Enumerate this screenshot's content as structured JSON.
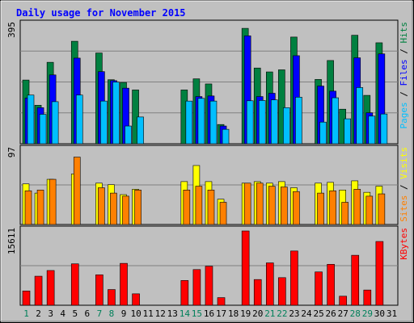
{
  "chart_data": {
    "type": "bar",
    "title": "Daily usage for November 2015",
    "categories": [
      "1",
      "2",
      "3",
      "4",
      "5",
      "6",
      "7",
      "8",
      "9",
      "10",
      "11",
      "12",
      "13",
      "14",
      "15",
      "16",
      "17",
      "18",
      "19",
      "20",
      "21",
      "22",
      "23",
      "24",
      "25",
      "26",
      "27",
      "28",
      "29",
      "30",
      "31"
    ],
    "weekend_days": [
      "1",
      "7",
      "8",
      "14",
      "15",
      "21",
      "22",
      "28",
      "29"
    ],
    "panels": [
      {
        "max_label": "395",
        "ylim": [
          0,
          395
        ],
        "legend": [
          "Pages",
          "Files",
          "Hits"
        ],
        "legend_separator": " / ",
        "series": [
          {
            "name": "Hits",
            "color": "#008040",
            "values": [
              212,
              128,
              271,
              0,
              341,
              0,
              302,
              213,
              204,
              179,
              0,
              0,
              0,
              179,
              216,
              199,
              64,
              0,
              384,
              252,
              239,
              246,
              355,
              0,
              214,
              277,
              115,
              361,
              161,
              336,
              0
            ]
          },
          {
            "name": "Files",
            "color": "#0000ff",
            "values": [
              152,
              120,
              229,
              0,
              285,
              0,
              240,
              210,
              185,
              0,
              0,
              0,
              0,
              0,
              157,
              159,
              59,
              0,
              359,
              157,
              168,
              0,
              293,
              0,
              192,
              175,
              0,
              286,
              103,
              299,
              0
            ]
          },
          {
            "name": "Pages",
            "color": "#00bfff",
            "values": [
              162,
              98,
              140,
              0,
              162,
              0,
              142,
              205,
              59,
              89,
              0,
              0,
              0,
              142,
              151,
              142,
              48,
              0,
              143,
              144,
              146,
              120,
              155,
              0,
              72,
              153,
              83,
              187,
              92,
              99,
              0
            ]
          }
        ],
        "inner_bars": [
          {
            "series": "Files",
            "values": [
              0,
              0,
              0,
              0,
              0,
              0,
              0,
              0,
              0,
              0,
              0,
              0,
              0,
              0,
              0,
              0,
              0,
              0,
              0,
              0,
              0,
              0,
              0,
              0,
              0,
              0,
              0,
              0,
              0,
              0,
              0
            ]
          }
        ]
      },
      {
        "max_label": "97",
        "ylim": [
          0,
          97
        ],
        "legend": [
          "Sites",
          "Visits"
        ],
        "legend_separator": " / ",
        "series": [
          {
            "name": "Visits",
            "color": "#ffff00",
            "values": [
              53,
              41,
              59,
              0,
              66,
              0,
              54,
              52,
              39,
              46,
              0,
              0,
              0,
              56,
              77,
              56,
              33,
              0,
              54,
              56,
              54,
              56,
              48,
              0,
              54,
              55,
              45,
              57,
              42,
              50,
              0
            ]
          },
          {
            "name": "Sites",
            "color": "#ff8000",
            "values": [
              44,
              45,
              59,
              0,
              88,
              0,
              48,
              41,
              37,
              45,
              0,
              0,
              0,
              45,
              50,
              45,
              29,
              0,
              54,
              54,
              50,
              49,
              43,
              0,
              41,
              44,
              29,
              46,
              37,
              40,
              0
            ]
          }
        ]
      },
      {
        "max_label": "15611",
        "ylim": [
          0,
          15611
        ],
        "legend": [
          "KBytes"
        ],
        "legend_separator": "",
        "series": [
          {
            "name": "KBytes",
            "color": "#ff0000",
            "values": [
              3000,
              6100,
              7300,
              0,
              8700,
              0,
              6400,
              3300,
              8800,
              2400,
              0,
              0,
              0,
              5200,
              7500,
              8200,
              1600,
              0,
              15611,
              5400,
              8900,
              5800,
              11400,
              0,
              7000,
              8600,
              1900,
              10500,
              3200,
              13400,
              0
            ]
          }
        ]
      }
    ]
  }
}
